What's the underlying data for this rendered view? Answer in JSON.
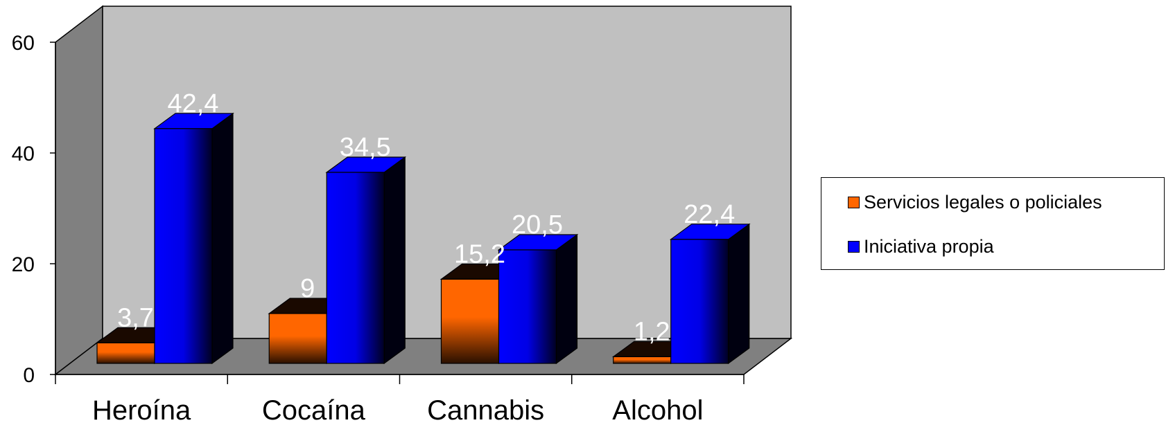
{
  "chart_data": {
    "type": "bar",
    "categories": [
      "Heroína",
      "Cocaína",
      "Cannabis",
      "Alcohol"
    ],
    "series": [
      {
        "name": "Servicios legales o policiales",
        "values": [
          3.7,
          9,
          15.2,
          1.2
        ],
        "labels": [
          "3,7",
          "9",
          "15,2",
          "1,2"
        ],
        "color": "#ff6600"
      },
      {
        "name": "Iniciativa propia",
        "values": [
          42.4,
          34.5,
          20.5,
          22.4
        ],
        "labels": [
          "42,4",
          "34,5",
          "20,5",
          "22,4"
        ],
        "color": "#0000ff"
      }
    ],
    "yticks": [
      "0",
      "20",
      "40",
      "60"
    ],
    "ylim": [
      0,
      60
    ],
    "grid": false,
    "legend_position": "right",
    "style": "3d-clustered-column",
    "wall_color": "#c0c0c0",
    "floor_color": "#808080"
  }
}
